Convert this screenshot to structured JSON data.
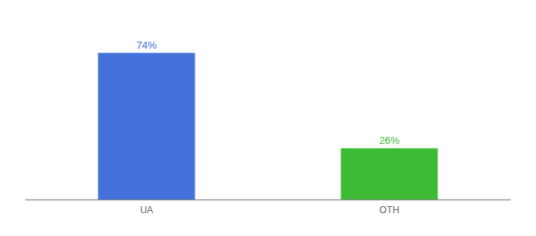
{
  "chart_data": {
    "type": "bar",
    "categories": [
      "UA",
      "OTH"
    ],
    "values": [
      74,
      26
    ],
    "value_labels": [
      "74%",
      "26%"
    ],
    "colors": [
      "#4472db",
      "#3dbb35"
    ],
    "ylim": [
      0,
      88
    ],
    "data_labels": true,
    "tick_labels": "x"
  }
}
